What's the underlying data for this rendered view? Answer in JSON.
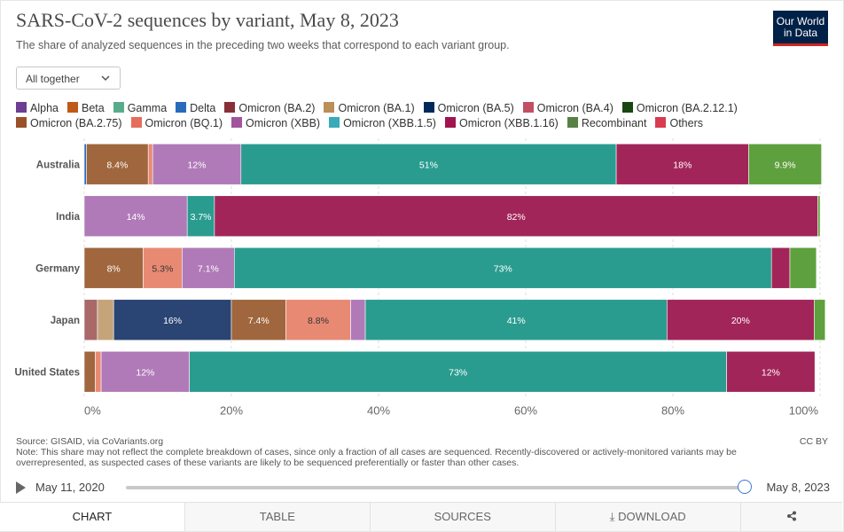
{
  "title": "SARS-CoV-2 sequences by variant, May 8, 2023",
  "subtitle": "The share of analyzed sequences in the preceding two weeks that correspond to each variant group.",
  "logo": {
    "line1": "Our World",
    "line2": "in Data"
  },
  "selector": {
    "value": "All together",
    "icon": "chevron-down-icon"
  },
  "source": "Source: GISAID, via CoVariants.org",
  "note": "Note: This share may not reflect the complete breakdown of cases, since only a fraction of all cases are sequenced. Recently-discovered or actively-monitored variants may be overrepresented, as suspected cases of these variants are likely to be sequenced preferentially or faster than other cases.",
  "license": "CC BY",
  "timeline": {
    "start": "May 11, 2020",
    "end": "May 8, 2023",
    "position": 1.0
  },
  "tabs": [
    "CHART",
    "TABLE",
    "SOURCES",
    "DOWNLOAD"
  ],
  "chart_data": {
    "type": "bar",
    "orientation": "horizontal-stacked",
    "categories": [
      "Australia",
      "India",
      "Germany",
      "Japan",
      "United States"
    ],
    "xlim": [
      0,
      100
    ],
    "xticks": [
      "0%",
      "20%",
      "40%",
      "60%",
      "80%",
      "100%"
    ],
    "grid": true,
    "legend_position": "top",
    "series": [
      {
        "name": "Alpha",
        "color": "#6d3e91",
        "values": [
          0,
          0,
          0,
          0,
          0
        ]
      },
      {
        "name": "Beta",
        "color": "#c05917",
        "values": [
          0,
          0,
          0,
          0,
          0
        ]
      },
      {
        "name": "Gamma",
        "color": "#58ac8c",
        "values": [
          0,
          0,
          0,
          0,
          0
        ]
      },
      {
        "name": "Delta",
        "color": "#286bbb",
        "values": [
          0.3,
          0,
          0,
          0,
          0
        ]
      },
      {
        "name": "Omicron (BA.2)",
        "color": "#883039",
        "values": [
          0,
          0,
          0,
          1.8,
          0
        ]
      },
      {
        "name": "Omicron (BA.1)",
        "color": "#bc8e5a",
        "values": [
          0,
          0,
          0,
          2.2,
          0
        ]
      },
      {
        "name": "Omicron (BA.5)",
        "color": "#00295b",
        "values": [
          0,
          0,
          0,
          0,
          0
        ]
      },
      {
        "name": "Omicron (BA.4)",
        "color": "#c15065",
        "values": [
          0,
          0,
          0,
          0,
          0
        ]
      },
      {
        "name": "Omicron (BA.2.12.1)",
        "color": "#18470f",
        "values": [
          0,
          0,
          0,
          16,
          0
        ]
      },
      {
        "name": "Omicron (BA.2.75)",
        "color": "#9a5129",
        "values": [
          8.4,
          0,
          8,
          7.4,
          1.5
        ]
      },
      {
        "name": "Omicron (BQ.1)",
        "color": "#e56e5a",
        "values": [
          0.6,
          0,
          5.3,
          8.8,
          0.8
        ]
      },
      {
        "name": "Omicron (XBB)",
        "color": "#a2559c",
        "values": [
          12,
          14,
          7.1,
          2,
          12
        ]
      },
      {
        "name": "Omicron (XBB.1.5)",
        "color": "#38aaba",
        "values": [
          51,
          3.7,
          73,
          41,
          73
        ]
      },
      {
        "name": "Omicron (XBB.1.16)",
        "color": "#a0144f",
        "values": [
          18,
          82,
          2.5,
          20,
          12
        ]
      },
      {
        "name": "Recombinant",
        "color": "#578145",
        "values": [
          9.9,
          0.3,
          3.6,
          1.5,
          0
        ]
      },
      {
        "name": "Others",
        "color": "#d73c50",
        "values": [
          0,
          0,
          0,
          0,
          0
        ]
      }
    ],
    "rendered_fills": {
      "Omicron (BA.2.75)": "#a0663d",
      "Omicron (BQ.1)": "#e88a73",
      "Omicron (XBB)": "#b07ab8",
      "Omicron (XBB.1.5)": "#2a9c8f",
      "Omicron (XBB.1.16)": "#a22559",
      "Omicron (BA.2.12.1)": "#2a4473",
      "Omicron (BA.2)": "#a86968",
      "Omicron (BA.1)": "#c6a47a",
      "Recombinant": "#5fa03e"
    },
    "data_labels": [
      [
        "8.4%",
        "12%",
        "51%",
        "18%",
        "9.9%"
      ],
      [
        "14%",
        "3.7%",
        "82%"
      ],
      [
        "8%",
        "5.3%",
        "7.1%",
        "73%"
      ],
      [
        "16%",
        "7.4%",
        "8.8%",
        "41%",
        "20%"
      ],
      [
        "12%",
        "73%",
        "12%"
      ]
    ]
  }
}
